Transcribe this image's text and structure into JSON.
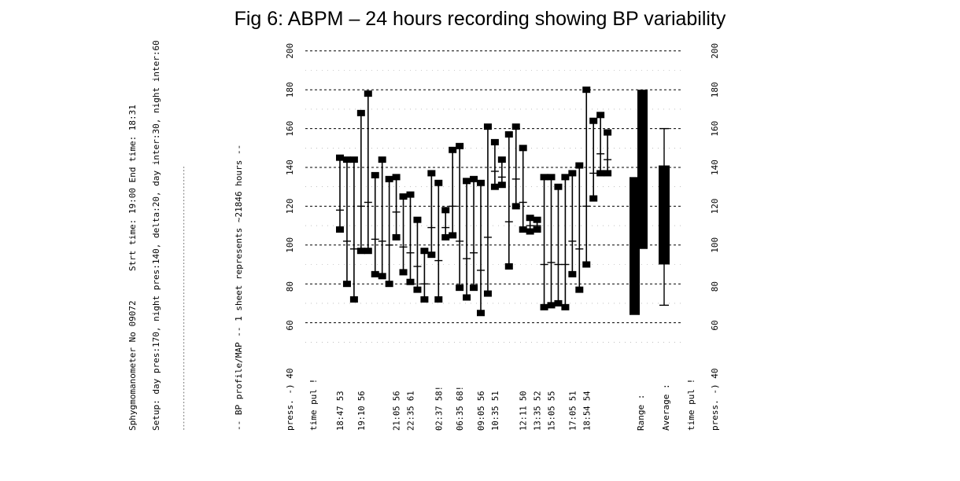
{
  "figure": {
    "title": "Fig 6: ABPM – 24 hours recording showing BP variability"
  },
  "header": {
    "device": "Sphygmomanometer No 09072",
    "times": "Strt time: 19:00   End time: 18:31",
    "setup": "Setup: day pres:170, night pres:140, delta:20, day inter:30, night inter:60",
    "rule": "--------------------------------------------------------------------------------",
    "subtitle": "-- BP profile/MAP --   1 sheet represents ~21846 hours --"
  },
  "column_labels": {
    "press_left": "press. -) 40",
    "time_left": "time   pul !",
    "range": "Range :",
    "average": "Average :",
    "time_right": "time  pul !",
    "press_right": "press. -) 40"
  },
  "chart_data": {
    "type": "range",
    "pressure_axis": {
      "range": [
        40,
        200
      ],
      "ticks": [
        60,
        80,
        100,
        120,
        140,
        160,
        180,
        200
      ]
    },
    "time_labels": [
      {
        "label": "18:47  53",
        "at": 1
      },
      {
        "label": "19:10  56",
        "at": 4
      },
      {
        "label": "21:05  56",
        "at": 9
      },
      {
        "label": "22:35  61",
        "at": 11
      },
      {
        "label": "02:37  58!",
        "at": 15
      },
      {
        "label": "06:35  68!",
        "at": 18
      },
      {
        "label": "09:05  56",
        "at": 21
      },
      {
        "label": "10:35  51",
        "at": 23
      },
      {
        "label": "12:11  50",
        "at": 27
      },
      {
        "label": "13:35  52",
        "at": 29
      },
      {
        "label": "15:05  55",
        "at": 31
      },
      {
        "label": "17:05  51",
        "at": 34
      },
      {
        "label": "18:54  54",
        "at": 36
      }
    ],
    "readings": [
      {
        "sys": 145,
        "dia": 108,
        "map": 118
      },
      {
        "sys": 144,
        "dia": 80,
        "map": 102
      },
      {
        "sys": 144,
        "dia": 72,
        "map": 98
      },
      {
        "sys": 168,
        "dia": 97,
        "map": 120
      },
      {
        "sys": 178,
        "dia": 97,
        "map": 122
      },
      {
        "sys": 136,
        "dia": 85,
        "map": 103
      },
      {
        "sys": 144,
        "dia": 84,
        "map": 102
      },
      {
        "sys": 134,
        "dia": 80,
        "map": 100
      },
      {
        "sys": 135,
        "dia": 104,
        "map": 117
      },
      {
        "sys": 125,
        "dia": 86,
        "map": 99
      },
      {
        "sys": 126,
        "dia": 81,
        "map": 96
      },
      {
        "sys": 113,
        "dia": 77,
        "map": 89
      },
      {
        "sys": 97,
        "dia": 72,
        "map": 80
      },
      {
        "sys": 137,
        "dia": 95,
        "map": 109
      },
      {
        "sys": 132,
        "dia": 72,
        "map": 92
      },
      {
        "sys": 118,
        "dia": 104,
        "map": 109
      },
      {
        "sys": 149,
        "dia": 105,
        "map": 120
      },
      {
        "sys": 151,
        "dia": 78,
        "map": 102
      },
      {
        "sys": 133,
        "dia": 73,
        "map": 93
      },
      {
        "sys": 134,
        "dia": 78,
        "map": 96
      },
      {
        "sys": 132,
        "dia": 65,
        "map": 87
      },
      {
        "sys": 161,
        "dia": 75,
        "map": 104
      },
      {
        "sys": 153,
        "dia": 130,
        "map": 138
      },
      {
        "sys": 144,
        "dia": 131,
        "map": 135
      },
      {
        "sys": 157,
        "dia": 89,
        "map": 112
      },
      {
        "sys": 161,
        "dia": 120,
        "map": 134
      },
      {
        "sys": 150,
        "dia": 108,
        "map": 122
      },
      {
        "sys": 114,
        "dia": 107,
        "map": 110
      },
      {
        "sys": 113,
        "dia": 108,
        "map": 110
      },
      {
        "sys": 135,
        "dia": 68,
        "map": 90
      },
      {
        "sys": 135,
        "dia": 69,
        "map": 91
      },
      {
        "sys": 130,
        "dia": 70,
        "map": 90
      },
      {
        "sys": 135,
        "dia": 68,
        "map": 90
      },
      {
        "sys": 137,
        "dia": 85,
        "map": 102
      },
      {
        "sys": 141,
        "dia": 77,
        "map": 98
      },
      {
        "sys": 180,
        "dia": 90,
        "map": 120
      },
      {
        "sys": 164,
        "dia": 124,
        "map": 137
      },
      {
        "sys": 167,
        "dia": 137,
        "map": 147
      },
      {
        "sys": 158,
        "dia": 137,
        "map": 144
      }
    ],
    "range_summary": [
      {
        "low": 64,
        "high": 135
      },
      {
        "low": 98,
        "high": 180
      }
    ],
    "average_summary": {
      "whisker_low": 69,
      "box_low": 90,
      "box_high": 141,
      "whisker_high": 160
    },
    "grid": "dashed"
  }
}
